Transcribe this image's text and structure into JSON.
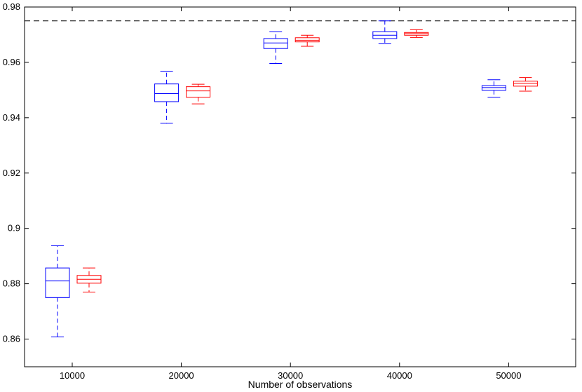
{
  "chart_data": {
    "type": "box",
    "title": "",
    "xlabel": "Number of observations",
    "ylabel": "",
    "ylim": [
      0.85,
      0.98
    ],
    "yticks": [
      0.86,
      0.88,
      0.9,
      0.92,
      0.94,
      0.96,
      0.98
    ],
    "ytick_labels": [
      "0.86",
      "0.88",
      "0.9",
      "0.92",
      "0.94",
      "0.96",
      "0.98"
    ],
    "categories": [
      "10000",
      "20000",
      "30000",
      "40000",
      "50000"
    ],
    "reference_line": {
      "y": 0.975,
      "style": "dashed",
      "color": "#000000"
    },
    "grid": false,
    "legend": "none",
    "series": [
      {
        "color": "#0000ff",
        "boxes": [
          {
            "whisker_low": 0.8608,
            "q1": 0.875,
            "median": 0.881,
            "q3": 0.8857,
            "whisker_high": 0.8937
          },
          {
            "whisker_low": 0.938,
            "q1": 0.9458,
            "median": 0.9487,
            "q3": 0.9522,
            "whisker_high": 0.9568
          },
          {
            "whisker_low": 0.9596,
            "q1": 0.965,
            "median": 0.967,
            "q3": 0.9686,
            "whisker_high": 0.9711
          },
          {
            "whisker_low": 0.9667,
            "q1": 0.9686,
            "median": 0.9698,
            "q3": 0.9711,
            "whisker_high": 0.975
          },
          {
            "whisker_low": 0.9474,
            "q1": 0.9499,
            "median": 0.9509,
            "q3": 0.9516,
            "whisker_high": 0.9537
          }
        ]
      },
      {
        "color": "#ff0000",
        "boxes": [
          {
            "whisker_low": 0.877,
            "q1": 0.8802,
            "median": 0.8816,
            "q3": 0.883,
            "whisker_high": 0.8857
          },
          {
            "whisker_low": 0.945,
            "q1": 0.9474,
            "median": 0.9497,
            "q3": 0.9512,
            "whisker_high": 0.9521
          },
          {
            "whisker_low": 0.9658,
            "q1": 0.9674,
            "median": 0.968,
            "q3": 0.9689,
            "whisker_high": 0.9698
          },
          {
            "whisker_low": 0.969,
            "q1": 0.9698,
            "median": 0.9704,
            "q3": 0.9708,
            "whisker_high": 0.9718
          },
          {
            "whisker_low": 0.9496,
            "q1": 0.9514,
            "median": 0.9524,
            "q3": 0.9532,
            "whisker_high": 0.9545
          }
        ]
      }
    ]
  }
}
